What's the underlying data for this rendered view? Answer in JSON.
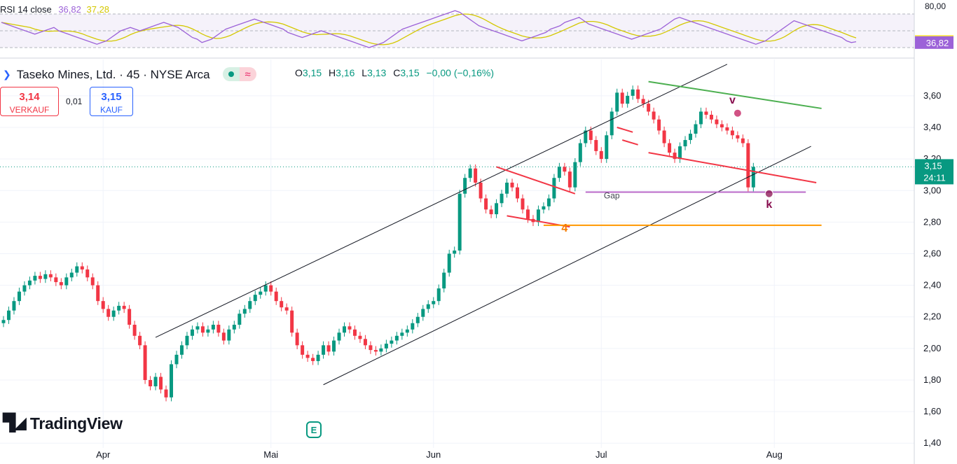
{
  "rsi": {
    "label": "RSI 14 close",
    "value": "36,82",
    "ma_value": "37,28",
    "axis_ticks": [
      "80,00"
    ],
    "line_color": "#9c62d8",
    "ma_color": "#d4c800",
    "values": [
      60,
      58,
      56,
      54,
      52,
      50,
      48,
      46,
      48,
      50,
      52,
      54,
      50,
      48,
      46,
      44,
      42,
      40,
      38,
      36,
      34,
      36,
      38,
      42,
      46,
      50,
      52,
      54,
      52,
      50,
      52,
      54,
      56,
      58,
      60,
      58,
      56,
      54,
      50,
      46,
      42,
      40,
      36,
      38,
      40,
      44,
      48,
      52,
      54,
      56,
      58,
      60,
      62,
      64,
      62,
      60,
      58,
      56,
      54,
      52,
      48,
      46,
      44,
      42,
      44,
      46,
      48,
      50,
      48,
      46,
      44,
      42,
      40,
      38,
      36,
      34,
      32,
      30,
      32,
      34,
      36,
      40,
      44,
      48,
      52,
      54,
      56,
      58,
      60,
      62,
      64,
      66,
      68,
      70,
      72,
      74,
      72,
      68,
      64,
      60,
      56,
      54,
      52,
      50,
      48,
      46,
      44,
      42,
      40,
      38,
      40,
      42,
      44,
      46,
      48,
      52,
      54,
      56,
      60,
      62,
      64,
      66,
      62,
      58,
      56,
      54,
      52,
      50,
      48,
      46,
      44,
      42,
      40,
      42,
      44,
      46,
      48,
      50,
      52,
      56,
      60,
      64,
      66,
      64,
      62,
      60,
      58,
      56,
      54,
      52,
      50,
      48,
      46,
      44,
      42,
      40,
      38,
      36,
      34,
      36,
      38,
      42,
      46,
      50,
      54,
      58,
      62,
      60,
      58,
      56,
      54,
      52,
      50,
      48,
      46,
      44,
      42,
      38,
      36,
      37
    ]
  },
  "header": {
    "symbol": "Taseko Mines, Ltd. · 45 · NYSE Arca",
    "ohlc_labels": [
      "O",
      "H",
      "L",
      "C"
    ],
    "ohlc_values": [
      "3,15",
      "3,16",
      "3,13",
      "3,15"
    ],
    "change": "−0,00 (−0,16%)"
  },
  "trade": {
    "sell_price": "3,14",
    "sell_label": "VERKAUF",
    "spread": "0,01",
    "buy_price": "3,15",
    "buy_label": "KAUF"
  },
  "current_price": {
    "value": "3,15",
    "countdown": "24:11",
    "color": "#089981"
  },
  "logo": "TradingView",
  "earnings_badge": "E",
  "chart_data": {
    "type": "candlestick",
    "x_axis_labels": [
      {
        "label": "Apr",
        "bar": 19
      },
      {
        "label": "Mai",
        "bar": 51
      },
      {
        "label": "Jun",
        "bar": 82
      },
      {
        "label": "Jul",
        "bar": 114
      },
      {
        "label": "Aug",
        "bar": 147
      }
    ],
    "y_ticks": [
      "3,60",
      "3,40",
      "3,20",
      "3,00",
      "2,80",
      "2,60",
      "2,40",
      "2,20",
      "2,00",
      "1,80",
      "1,60",
      "1,40"
    ],
    "ylim": [
      1.37,
      3.83
    ],
    "x_bars": 165,
    "closes": [
      2.18,
      2.24,
      2.3,
      2.36,
      2.4,
      2.43,
      2.46,
      2.44,
      2.47,
      2.45,
      2.42,
      2.4,
      2.45,
      2.48,
      2.52,
      2.5,
      2.45,
      2.4,
      2.3,
      2.25,
      2.2,
      2.24,
      2.27,
      2.25,
      2.15,
      2.08,
      2.02,
      1.8,
      1.76,
      1.82,
      1.74,
      1.69,
      1.9,
      1.96,
      2.02,
      2.08,
      2.12,
      2.14,
      2.1,
      2.12,
      2.15,
      2.1,
      2.05,
      2.12,
      2.15,
      2.22,
      2.25,
      2.3,
      2.34,
      2.36,
      2.4,
      2.36,
      2.3,
      2.26,
      2.24,
      2.1,
      2.02,
      1.96,
      1.94,
      1.92,
      1.96,
      2.02,
      1.98,
      2.05,
      2.1,
      2.14,
      2.12,
      2.08,
      2.06,
      2.02,
      1.99,
      1.98,
      2.0,
      2.03,
      2.05,
      2.08,
      2.1,
      2.12,
      2.16,
      2.2,
      2.25,
      2.28,
      2.3,
      2.38,
      2.48,
      2.6,
      2.62,
      2.98,
      3.08,
      3.14,
      3.05,
      2.95,
      2.88,
      2.85,
      2.92,
      2.98,
      3.05,
      3.02,
      2.95,
      2.88,
      2.82,
      2.8,
      2.88,
      2.9,
      2.95,
      3.08,
      3.15,
      3.12,
      3.02,
      3.18,
      3.3,
      3.38,
      3.32,
      3.25,
      3.2,
      3.35,
      3.5,
      3.62,
      3.55,
      3.6,
      3.64,
      3.58,
      3.55,
      3.5,
      3.45,
      3.38,
      3.3,
      3.24,
      3.2,
      3.28,
      3.32,
      3.36,
      3.42,
      3.5,
      3.48,
      3.45,
      3.42,
      3.4,
      3.38,
      3.35,
      3.33,
      3.3,
      3.02,
      3.15
    ],
    "annotations": [
      {
        "text": "Gap",
        "bar": 116,
        "price": 2.95,
        "color": "#434651"
      },
      {
        "text": "4",
        "bar": 107,
        "price": 2.74,
        "color": "#f57c00"
      },
      {
        "text": "v",
        "bar": 139,
        "price": 3.55,
        "color": "#880e4f"
      },
      {
        "text": "k",
        "bar": 146,
        "price": 2.89,
        "color": "#880e4f"
      }
    ],
    "drawings": [
      {
        "color": "#131722",
        "from": [
          29,
          2.07
        ],
        "to": [
          138,
          3.8
        ]
      },
      {
        "color": "#131722",
        "from": [
          61,
          1.77
        ],
        "to": [
          154,
          3.28
        ]
      },
      {
        "color": "#4caf50",
        "from": [
          123,
          3.69
        ],
        "to": [
          156,
          3.52
        ]
      },
      {
        "color": "#f23645",
        "from": [
          123,
          3.24
        ],
        "to": [
          155,
          3.05
        ]
      },
      {
        "color": "#f23645",
        "from": [
          94,
          3.15
        ],
        "to": [
          109,
          2.98
        ]
      },
      {
        "color": "#f23645",
        "from": [
          96,
          2.84
        ],
        "to": [
          108,
          2.77
        ]
      },
      {
        "color": "#f23645",
        "from": [
          117,
          3.4
        ],
        "to": [
          120,
          3.37
        ]
      },
      {
        "color": "#f23645",
        "from": [
          118,
          3.32
        ],
        "to": [
          121,
          3.29
        ]
      },
      {
        "color": "#ba68c8",
        "from": [
          111,
          2.99
        ],
        "to": [
          153,
          2.99
        ]
      },
      {
        "color": "#ff9800",
        "from": [
          103,
          2.78
        ],
        "to": [
          156,
          2.78
        ]
      }
    ],
    "markers": [
      {
        "bar": 140,
        "price": 3.49,
        "color": "#c2185b"
      },
      {
        "bar": 146,
        "price": 2.98,
        "color": "#880e4f"
      }
    ]
  }
}
